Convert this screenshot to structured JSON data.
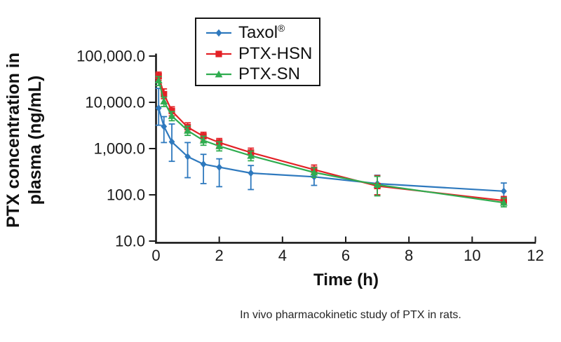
{
  "figure": {
    "caption": "In vivo pharmacokinetic study of PTX in rats."
  },
  "colors": {
    "axis": "#1a1a1a",
    "background": "#ffffff",
    "taxol_blue": "#2E79BE",
    "ptx_hsn_red": "#E32126",
    "ptx_sn_green": "#2FAC4F"
  },
  "chart_data": {
    "type": "line",
    "title": "",
    "xlabel": "Time (h)",
    "ylabel": "PTX concentration in plasma (ng/mL)",
    "ylabel_lines": [
      "PTX concentration in",
      "plasma (ng/mL)"
    ],
    "x_scale": "linear",
    "y_scale": "log10",
    "xlim": [
      0,
      12
    ],
    "ylim": [
      10,
      100000
    ],
    "grid": false,
    "legend_position": "top-inside-boxed",
    "x_ticks": [
      0,
      2,
      4,
      6,
      8,
      10,
      12
    ],
    "y_ticks": [
      {
        "value": 100000,
        "label": "100,000.0"
      },
      {
        "value": 10000,
        "label": "10,000.0"
      },
      {
        "value": 1000,
        "label": "1,000.0"
      },
      {
        "value": 100,
        "label": "100.0"
      },
      {
        "value": 10,
        "label": "10.0"
      }
    ],
    "times_h": [
      0.083,
      0.25,
      0.5,
      1,
      1.5,
      2,
      3,
      5,
      7,
      11
    ],
    "series": [
      {
        "name": "Taxol®",
        "marker": "diamond",
        "color": "#2E79BE",
        "values": [
          7500,
          3000,
          1400,
          670,
          460,
          395,
          295,
          245,
          175,
          120
        ],
        "err_hi": [
          20000,
          4900,
          3400,
          1350,
          750,
          600,
          430,
          390,
          265,
          180
        ],
        "err_lo": [
          3200,
          1350,
          530,
          235,
          175,
          150,
          130,
          160,
          100,
          88
        ]
      },
      {
        "name": "PTX-HSN",
        "marker": "square",
        "color": "#E32126",
        "values": [
          37000,
          15000,
          6500,
          2900,
          1850,
          1350,
          820,
          350,
          155,
          75
        ],
        "err_hi": [
          45000,
          19500,
          8000,
          3600,
          2250,
          1650,
          1020,
          440,
          260,
          92
        ],
        "err_lo": [
          30000,
          12000,
          5100,
          2300,
          1450,
          1070,
          630,
          280,
          100,
          60
        ]
      },
      {
        "name": "PTX-SN",
        "marker": "triangle",
        "color": "#2FAC4F",
        "values": [
          30000,
          10500,
          5100,
          2450,
          1500,
          1130,
          700,
          305,
          165,
          68
        ],
        "err_hi": [
          36000,
          13000,
          6300,
          3050,
          1850,
          1400,
          880,
          385,
          250,
          85
        ],
        "err_lo": [
          23000,
          8100,
          4000,
          1930,
          1180,
          890,
          545,
          240,
          95,
          55
        ]
      }
    ]
  }
}
